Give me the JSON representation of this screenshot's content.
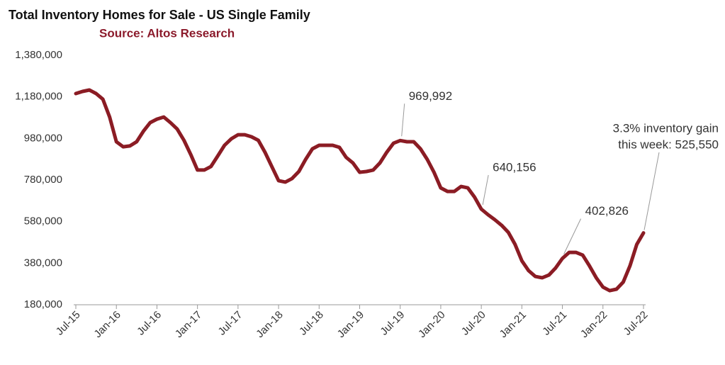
{
  "chart_data": {
    "type": "line",
    "title": "Total Inventory Homes for Sale - US Single Family",
    "subtitle": "Source: Altos Research",
    "categories": [
      "Jul-15",
      null,
      null,
      null,
      null,
      null,
      "Jan-16",
      null,
      null,
      null,
      null,
      null,
      "Jul-16",
      null,
      null,
      null,
      null,
      null,
      "Jan-17",
      null,
      null,
      null,
      null,
      null,
      "Jul-17",
      null,
      null,
      null,
      null,
      null,
      "Jan-18",
      null,
      null,
      null,
      null,
      null,
      "Jul-18",
      null,
      null,
      null,
      null,
      null,
      "Jan-19",
      null,
      null,
      null,
      null,
      null,
      "Jul-19",
      null,
      null,
      null,
      null,
      null,
      "Jan-20",
      null,
      null,
      null,
      null,
      null,
      "Jul-20",
      null,
      null,
      null,
      null,
      null,
      "Jan-21",
      null,
      null,
      null,
      null,
      null,
      "Jul-21",
      null,
      null,
      null,
      null,
      null,
      "Jan-22",
      null,
      null,
      null,
      null,
      null,
      "Jul-22"
    ],
    "values": [
      1196000,
      1206000,
      1213000,
      1196000,
      1169000,
      1083000,
      964000,
      940000,
      944000,
      964000,
      1015000,
      1056000,
      1073000,
      1083000,
      1056000,
      1025000,
      971000,
      903000,
      828000,
      828000,
      845000,
      896000,
      947000,
      978000,
      998000,
      998000,
      988000,
      971000,
      913000,
      845000,
      777000,
      770000,
      787000,
      821000,
      879000,
      930000,
      947000,
      947000,
      947000,
      937000,
      889000,
      862000,
      817000,
      821000,
      828000,
      862000,
      913000,
      957000,
      969992,
      964000,
      964000,
      930000,
      879000,
      817000,
      742000,
      725000,
      725000,
      749000,
      742000,
      698000,
      640156,
      613000,
      589000,
      562000,
      528000,
      470000,
      391000,
      344000,
      316000,
      310000,
      323000,
      357000,
      402826,
      432000,
      432000,
      419000,
      367000,
      310000,
      265000,
      248000,
      255000,
      289000,
      367000,
      470000,
      525550
    ],
    "value_labels": [
      null,
      null,
      null,
      null,
      null,
      null,
      null,
      null,
      null,
      null,
      null,
      null,
      null,
      null,
      null,
      null,
      null,
      null,
      null,
      null,
      null,
      null,
      null,
      null,
      null,
      null,
      null,
      null,
      null,
      null,
      null,
      null,
      null,
      null,
      null,
      null,
      null,
      null,
      null,
      null,
      null,
      null,
      null,
      null,
      null,
      null,
      null,
      null,
      "969,992",
      null,
      null,
      null,
      null,
      null,
      null,
      null,
      null,
      null,
      null,
      null,
      "640,156",
      null,
      null,
      null,
      null,
      null,
      null,
      null,
      null,
      null,
      null,
      null,
      "402,826",
      null,
      null,
      null,
      null,
      null,
      null,
      null,
      null,
      null,
      null,
      null,
      null
    ],
    "annotations": [
      "3.3% inventory gain",
      "this week: 525,550"
    ],
    "color": "#8b1c24",
    "ylim": [
      180000,
      1380000
    ],
    "yticks": [
      {
        "value": 180000,
        "label": "180,000"
      },
      {
        "value": 380000,
        "label": "380,000"
      },
      {
        "value": 580000,
        "label": "580,000"
      },
      {
        "value": 780000,
        "label": "780,000"
      },
      {
        "value": 980000,
        "label": "980,000"
      },
      {
        "value": 1180000,
        "label": "1,180,000"
      },
      {
        "value": 1380000,
        "label": "1,380,000"
      }
    ],
    "grid": false
  }
}
